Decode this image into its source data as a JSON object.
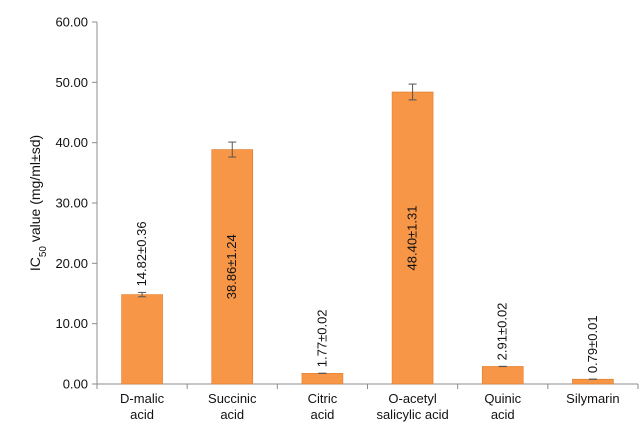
{
  "chart_data": {
    "type": "bar",
    "title": "",
    "xlabel": "",
    "ylabel": {
      "prefix": "IC",
      "subscript": "50",
      "suffix": " value (mg/ml±sd)"
    },
    "ylim": [
      0,
      60
    ],
    "yticks": [
      0,
      10,
      20,
      30,
      40,
      50,
      60
    ],
    "ytick_labels": [
      "0.00",
      "10.00",
      "20.00",
      "30.00",
      "40.00",
      "50.00",
      "60.00"
    ],
    "grid": false,
    "legend": "none",
    "bar_color": "#F79646",
    "categories": [
      [
        "D-malic",
        "acid"
      ],
      [
        "Succinic",
        "acid"
      ],
      [
        "Citric",
        "acid"
      ],
      [
        "O-acetyl",
        "salicylic acid"
      ],
      [
        "Quinic",
        "acid"
      ],
      [
        "Silymarin"
      ]
    ],
    "values": [
      14.82,
      38.86,
      1.77,
      48.4,
      2.91,
      0.79
    ],
    "errors": [
      0.36,
      1.24,
      0.02,
      1.31,
      0.02,
      0.01
    ],
    "data_labels": [
      "14.82±0.36",
      "38.86±1.24",
      "1.77±0.02",
      "48.40±1.31",
      "2.91±0.02",
      "0.79±0.01"
    ],
    "label_inside": [
      false,
      true,
      false,
      true,
      false,
      false
    ]
  }
}
